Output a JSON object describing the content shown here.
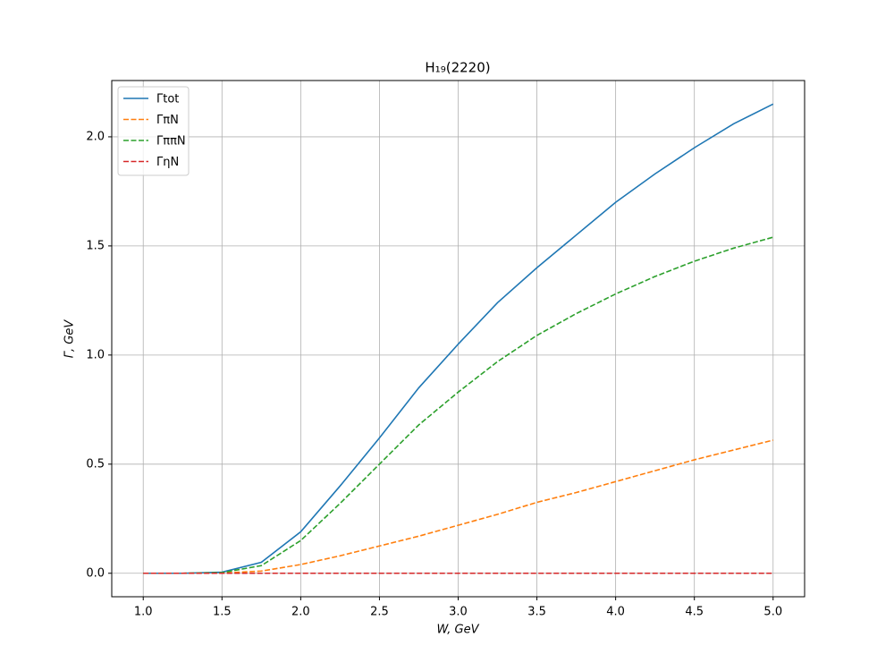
{
  "chart_data": {
    "type": "line",
    "title": "H₁₉(2220)",
    "x_label": "W, GeV",
    "y_label": "Γ,  GeV",
    "x": [
      1.0,
      1.25,
      1.5,
      1.75,
      2.0,
      2.25,
      2.5,
      2.75,
      3.0,
      3.25,
      3.5,
      3.75,
      4.0,
      4.25,
      4.5,
      4.75,
      5.0
    ],
    "series": [
      {
        "name": "Γtot",
        "color": "#1f77b4",
        "linestyle": "solid",
        "values": [
          0,
          0,
          0.005,
          0.05,
          0.19,
          0.4,
          0.62,
          0.85,
          1.05,
          1.24,
          1.4,
          1.55,
          1.7,
          1.83,
          1.95,
          2.06,
          2.15
        ]
      },
      {
        "name": "ΓπN",
        "color": "#ff7f0e",
        "linestyle": "dashed",
        "values": [
          0,
          0,
          0.001,
          0.01,
          0.04,
          0.08,
          0.125,
          0.17,
          0.22,
          0.27,
          0.325,
          0.37,
          0.42,
          0.47,
          0.52,
          0.565,
          0.61
        ]
      },
      {
        "name": "ΓππN",
        "color": "#2ca02c",
        "linestyle": "dashed",
        "values": [
          0,
          0,
          0.003,
          0.035,
          0.15,
          0.32,
          0.5,
          0.68,
          0.83,
          0.97,
          1.09,
          1.19,
          1.28,
          1.36,
          1.43,
          1.49,
          1.54
        ]
      },
      {
        "name": "ΓηN",
        "color": "#d62728",
        "linestyle": "dashed",
        "values": [
          0,
          0,
          0,
          0,
          0,
          0,
          0,
          0,
          0,
          0,
          0,
          0,
          0,
          0,
          0,
          0,
          0
        ]
      }
    ],
    "xlim": [
      0.8,
      5.2
    ],
    "ylim": [
      -0.1076,
      2.258
    ],
    "xticks": [
      {
        "value": 1.0,
        "label": "1.0"
      },
      1.5,
      {
        "value": 2.0,
        "label": "2.0"
      },
      2.5,
      {
        "value": 3.0,
        "label": "3.0"
      },
      3.5,
      {
        "value": 4.0,
        "label": "4.0"
      },
      4.5,
      {
        "value": 5.0,
        "label": "5.0"
      }
    ],
    "yticks": [
      {
        "value": 0.0,
        "label": "0.0"
      },
      0.5,
      {
        "value": 1.0,
        "label": "1.0"
      },
      1.5,
      {
        "value": 2.0,
        "label": "2.0"
      }
    ],
    "grid": true,
    "legend": "upper left"
  }
}
